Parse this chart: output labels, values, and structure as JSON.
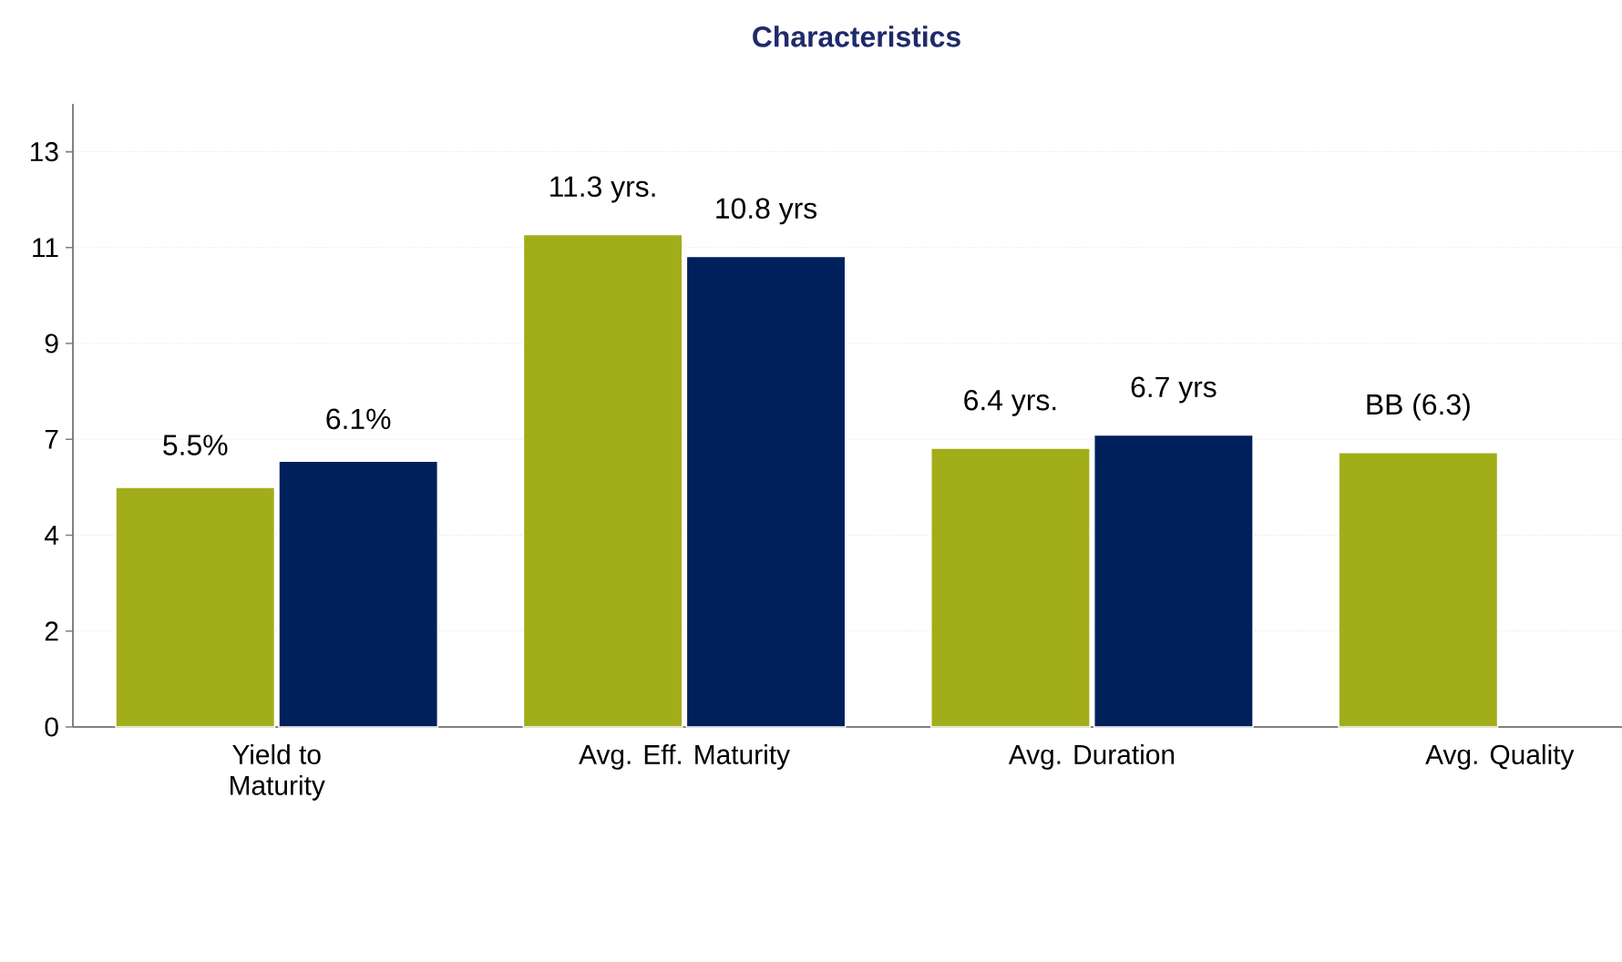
{
  "chart_data": {
    "type": "bar",
    "title": "Characteristics",
    "categories": [
      "Yield to Maturity",
      "Avg. Eff. Maturity",
      "Avg. Duration",
      "Avg. Quality"
    ],
    "series": [
      {
        "color": "#a2ad1a",
        "values": [
          5.5,
          11.3,
          6.4,
          6.3
        ],
        "value_labels": [
          "5.5%",
          "11.3 yrs.",
          "6.4 yrs.",
          "BB (6.3)"
        ]
      },
      {
        "color": "#00205b",
        "values": [
          6.1,
          10.8,
          6.7,
          null
        ],
        "value_labels": [
          "6.1%",
          "10.8 yrs",
          "6.7 yrs",
          null
        ]
      }
    ],
    "ylim": [
      0,
      14.3
    ],
    "yticks": [
      0,
      {
        "value": 2.2,
        "label": "2"
      },
      {
        "value": 4.4,
        "label": "4"
      },
      {
        "value": 6.6,
        "label": "7"
      },
      {
        "value": 8.8,
        "label": "9"
      },
      11,
      {
        "value": 13.2,
        "label": "13"
      }
    ],
    "grid": "y"
  }
}
